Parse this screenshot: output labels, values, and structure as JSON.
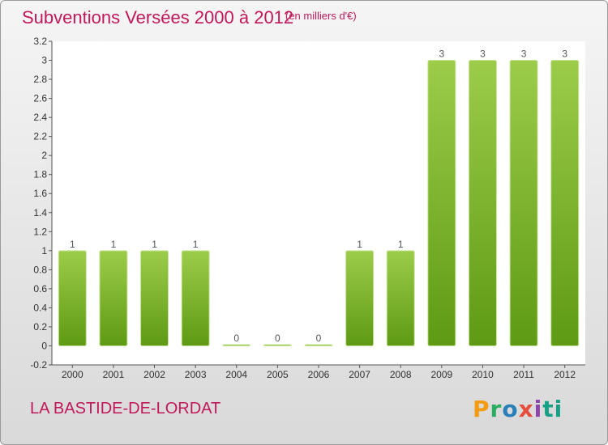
{
  "header": {
    "title": "Subventions Versées 2000 à 2012",
    "subtitle": "(en milliers d'€)"
  },
  "footer": {
    "commune": "LA BASTIDE-DE-LORDAT",
    "logo": "Proxiti"
  },
  "colors": {
    "bar_top": "#9ccc4a",
    "bar_bottom": "#5e9a14",
    "title": "#c2185b"
  },
  "chart_data": {
    "type": "bar",
    "title": "Subventions Versées 2000 à 2012",
    "subtitle": "(en milliers d'€)",
    "categories": [
      "2000",
      "2001",
      "2002",
      "2003",
      "2004",
      "2005",
      "2006",
      "2007",
      "2008",
      "2009",
      "2010",
      "2011",
      "2012"
    ],
    "values": [
      1,
      1,
      1,
      1,
      0,
      0,
      0,
      1,
      1,
      3,
      3,
      3,
      3
    ],
    "data_labels": [
      "1",
      "1",
      "1",
      "1",
      "0",
      "0",
      "0",
      "1",
      "1",
      "3",
      "3",
      "3",
      "3"
    ],
    "y_ticks": [
      "-0.2",
      "0",
      "0.2",
      "0.4",
      "0.6",
      "0.8",
      "1",
      "1.2",
      "1.4",
      "1.6",
      "1.8",
      "2",
      "2.2",
      "2.4",
      "2.6",
      "2.8",
      "3",
      "3.2"
    ],
    "ylim": [
      -0.2,
      3.2
    ],
    "grid": false
  }
}
